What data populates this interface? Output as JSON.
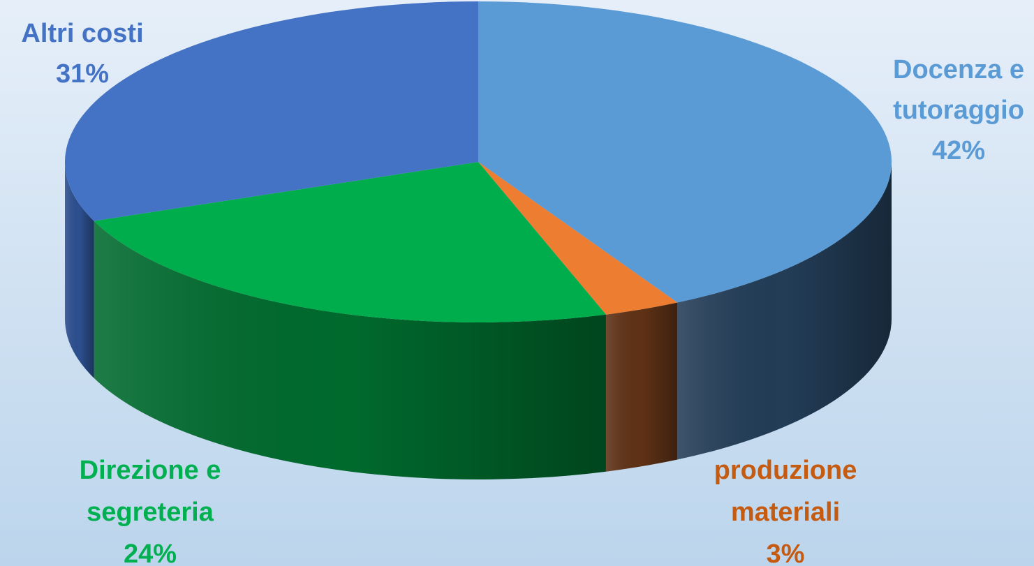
{
  "chart_data": {
    "type": "pie",
    "style": "3d",
    "slices": [
      {
        "label_lines": [
          "Docenza e",
          "tutoraggio"
        ],
        "pct_label": "42%",
        "value": 42,
        "color": "#5b9bd5",
        "side_color": "#233d57",
        "label_color": "#5b9bd5"
      },
      {
        "label_lines": [
          "produzione",
          "materiali"
        ],
        "pct_label": "3%",
        "value": 3,
        "color": "#ed7d31",
        "side_color": "#5f3216",
        "label_color": "#c55a11"
      },
      {
        "label_lines": [
          "Direzione e",
          "segreteria"
        ],
        "pct_label": "24%",
        "value": 24,
        "color": "#00ad4c",
        "side_color": "#006a2d",
        "label_color": "#00b050"
      },
      {
        "label_lines": [
          "Altri costi"
        ],
        "pct_label": "31%",
        "value": 31,
        "color": "#4472c4",
        "side_color": "#2c4f8f",
        "label_color": "#4472c4"
      }
    ]
  }
}
